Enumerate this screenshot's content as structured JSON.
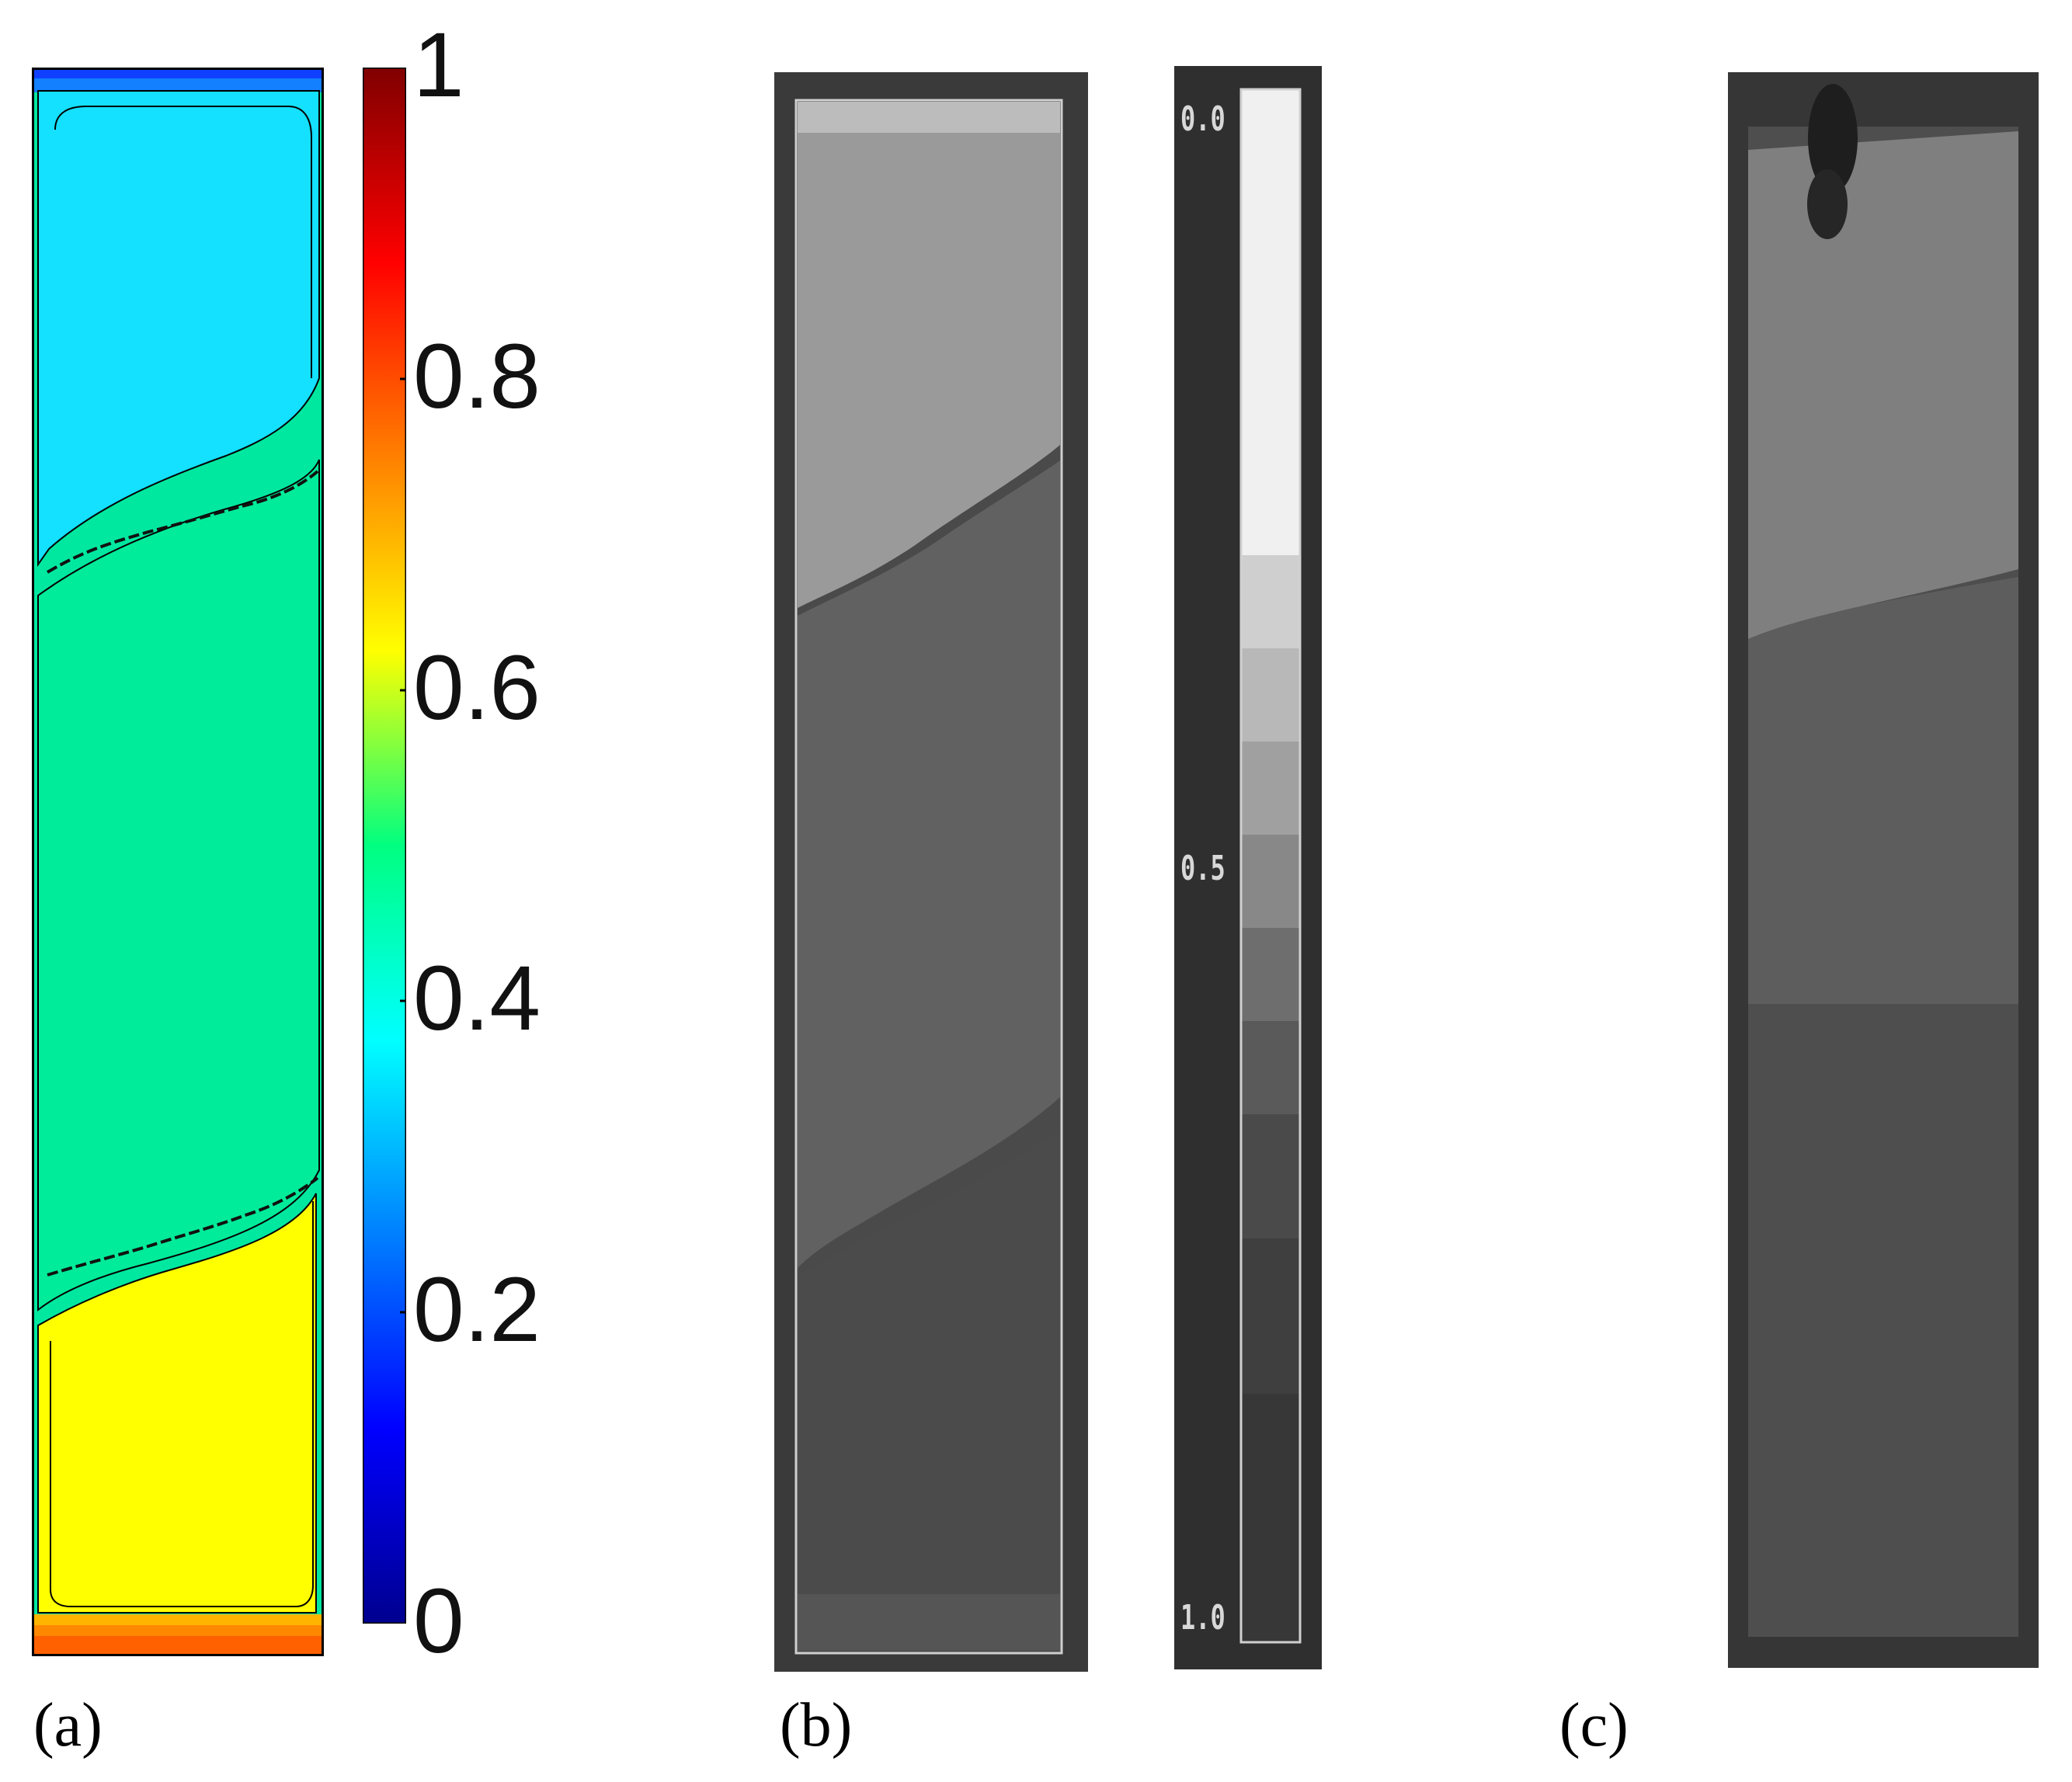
{
  "panels": {
    "a": {
      "label": "(a)",
      "colorbar": {
        "ticks": [
          "0",
          "0.2",
          "0.4",
          "0.6",
          "0.8",
          "1"
        ],
        "range": [
          0,
          1
        ],
        "colormap": "jet"
      },
      "regions": [
        {
          "name": "top layer",
          "value": 0.38,
          "color": "#12DDFF"
        },
        {
          "name": "middle layer",
          "value": 0.45,
          "color": "#00EB9A"
        },
        {
          "name": "bottom layer",
          "value": 0.62,
          "color": "#FFFF00"
        }
      ]
    },
    "b": {
      "label": "(b)",
      "grayscale_ticks": [
        "0.0",
        "0.5",
        "1.0"
      ]
    },
    "c": {
      "label": "(c)"
    }
  }
}
